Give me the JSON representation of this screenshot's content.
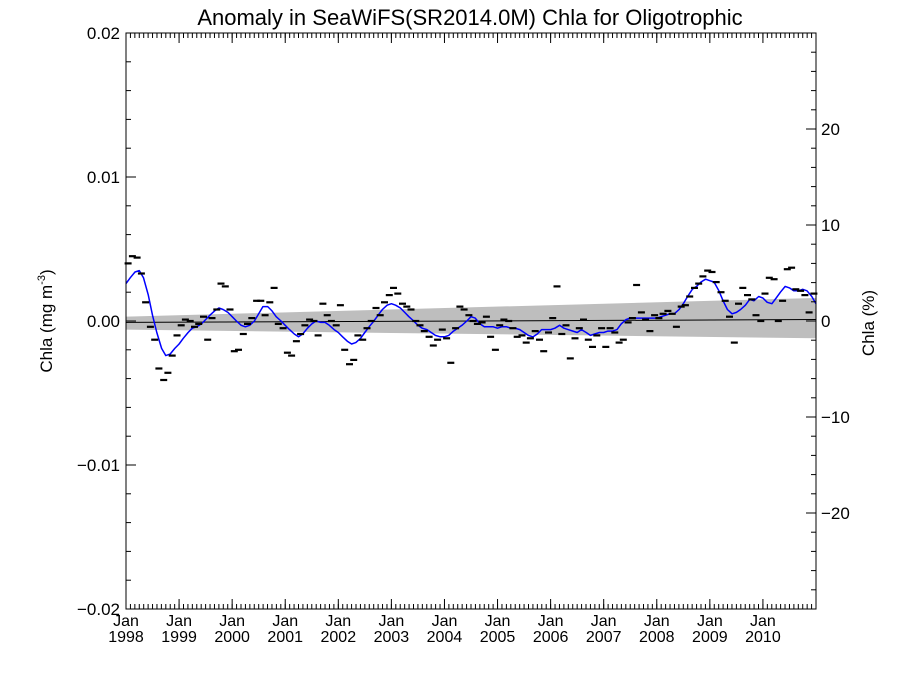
{
  "chart_data": {
    "type": "line",
    "title": "Anomaly in SeaWiFS(SR2014.0M) Chla for Oligotrophic",
    "ylabel_left": "Chla (mg m",
    "ylabel_left_sup": "-3",
    "ylabel_left_end": ")",
    "ylabel_right": "Chla (%)",
    "ylim_left": [
      -0.02,
      0.02
    ],
    "ylim_right": [
      -30,
      30
    ],
    "xlim": [
      1998.0,
      2011.0
    ],
    "left_ticks": [
      {
        "value": 0.02,
        "label": "0.02"
      },
      {
        "value": 0.01,
        "label": "0.01"
      },
      {
        "value": 0.0,
        "label": "0.00"
      },
      {
        "value": -0.01,
        "label": "−0.01"
      },
      {
        "value": -0.02,
        "label": "−0.02"
      }
    ],
    "right_ticks": [
      {
        "value": 20,
        "label": "20"
      },
      {
        "value": 10,
        "label": "10"
      },
      {
        "value": 0,
        "label": "0"
      },
      {
        "value": -10,
        "label": "−10"
      },
      {
        "value": -20,
        "label": "−20"
      }
    ],
    "x_ticks": [
      {
        "value": 1998,
        "month": "Jan",
        "year": "1998"
      },
      {
        "value": 1999,
        "month": "Jan",
        "year": "1999"
      },
      {
        "value": 2000,
        "month": "Jan",
        "year": "2000"
      },
      {
        "value": 2001,
        "month": "Jan",
        "year": "2001"
      },
      {
        "value": 2002,
        "month": "Jan",
        "year": "2002"
      },
      {
        "value": 2003,
        "month": "Jan",
        "year": "2003"
      },
      {
        "value": 2004,
        "month": "Jan",
        "year": "2004"
      },
      {
        "value": 2005,
        "month": "Jan",
        "year": "2005"
      },
      {
        "value": 2006,
        "month": "Jan",
        "year": "2006"
      },
      {
        "value": 2007,
        "month": "Jan",
        "year": "2007"
      },
      {
        "value": 2008,
        "month": "Jan",
        "year": "2008"
      },
      {
        "value": 2009,
        "month": "Jan",
        "year": "2009"
      },
      {
        "value": 2010,
        "month": "Jan",
        "year": "2010"
      }
    ],
    "confidence_band": {
      "color": "#bebebe",
      "upper": [
        [
          1998.0,
          0.0003
        ],
        [
          2011.0,
          0.0016
        ]
      ],
      "lower": [
        [
          1998.0,
          -0.0006
        ],
        [
          2011.0,
          -0.0012
        ]
      ]
    },
    "trend_line": {
      "color": "#000000",
      "points": [
        [
          1998.0,
          -0.0001
        ],
        [
          2011.0,
          0.0001
        ]
      ]
    },
    "monthly_anomalies": [
      [
        1998.04,
        0.004
      ],
      [
        1998.12,
        0.0045
      ],
      [
        1998.21,
        0.0044
      ],
      [
        1998.29,
        0.0033
      ],
      [
        1998.37,
        0.0013
      ],
      [
        1998.46,
        -0.0004
      ],
      [
        1998.54,
        -0.0013
      ],
      [
        1998.62,
        -0.0033
      ],
      [
        1998.71,
        -0.0041
      ],
      [
        1998.79,
        -0.0036
      ],
      [
        1998.87,
        -0.0024
      ],
      [
        1998.96,
        -0.001
      ],
      [
        1999.04,
        -0.0003
      ],
      [
        1999.12,
        0.0001
      ],
      [
        1999.21,
        0.0
      ],
      [
        1999.29,
        -0.0004
      ],
      [
        1999.37,
        -0.0002
      ],
      [
        1999.46,
        0.0003
      ],
      [
        1999.54,
        -0.0013
      ],
      [
        1999.62,
        0.0002
      ],
      [
        1999.71,
        0.0008
      ],
      [
        1999.79,
        0.0026
      ],
      [
        1999.87,
        0.0024
      ],
      [
        1999.96,
        0.0008
      ],
      [
        2000.04,
        -0.0021
      ],
      [
        2000.12,
        -0.002
      ],
      [
        2000.21,
        -0.0009
      ],
      [
        2000.29,
        -0.0002
      ],
      [
        2000.37,
        0.0002
      ],
      [
        2000.46,
        0.0014
      ],
      [
        2000.54,
        0.0014
      ],
      [
        2000.62,
        0.0004
      ],
      [
        2000.71,
        0.0013
      ],
      [
        2000.79,
        0.0023
      ],
      [
        2000.87,
        -0.0002
      ],
      [
        2000.96,
        -0.0005
      ],
      [
        2001.04,
        -0.0022
      ],
      [
        2001.12,
        -0.0024
      ],
      [
        2001.21,
        -0.0014
      ],
      [
        2001.29,
        -0.0009
      ],
      [
        2001.37,
        -0.0003
      ],
      [
        2001.46,
        0.0001
      ],
      [
        2001.54,
        0.0
      ],
      [
        2001.62,
        -0.001
      ],
      [
        2001.71,
        0.0012
      ],
      [
        2001.79,
        0.0004
      ],
      [
        2001.87,
        0.0
      ],
      [
        2001.96,
        -0.0003
      ],
      [
        2002.04,
        0.0011
      ],
      [
        2002.12,
        -0.002
      ],
      [
        2002.21,
        -0.003
      ],
      [
        2002.29,
        -0.0027
      ],
      [
        2002.37,
        -0.001
      ],
      [
        2002.46,
        -0.0013
      ],
      [
        2002.54,
        -0.0005
      ],
      [
        2002.62,
        0.0
      ],
      [
        2002.71,
        0.0009
      ],
      [
        2002.79,
        0.0004
      ],
      [
        2002.87,
        0.0013
      ],
      [
        2002.96,
        0.0018
      ],
      [
        2003.04,
        0.0023
      ],
      [
        2003.12,
        0.0019
      ],
      [
        2003.21,
        0.0012
      ],
      [
        2003.29,
        0.001
      ],
      [
        2003.37,
        0.0008
      ],
      [
        2003.46,
        0.0
      ],
      [
        2003.54,
        -0.0003
      ],
      [
        2003.62,
        -0.0007
      ],
      [
        2003.71,
        -0.0011
      ],
      [
        2003.79,
        -0.0017
      ],
      [
        2003.87,
        -0.0013
      ],
      [
        2003.96,
        -0.0006
      ],
      [
        2004.04,
        -0.0012
      ],
      [
        2004.12,
        -0.0029
      ],
      [
        2004.21,
        -0.0005
      ],
      [
        2004.29,
        0.001
      ],
      [
        2004.37,
        0.0008
      ],
      [
        2004.46,
        0.0004
      ],
      [
        2004.54,
        0.0
      ],
      [
        2004.62,
        -0.0002
      ],
      [
        2004.71,
        -0.0001
      ],
      [
        2004.79,
        0.0003
      ],
      [
        2004.87,
        -0.0011
      ],
      [
        2004.96,
        -0.002
      ],
      [
        2005.04,
        -0.0003
      ],
      [
        2005.12,
        0.0001
      ],
      [
        2005.21,
        0.0
      ],
      [
        2005.29,
        -0.0005
      ],
      [
        2005.37,
        -0.0011
      ],
      [
        2005.46,
        -0.001
      ],
      [
        2005.54,
        -0.0015
      ],
      [
        2005.62,
        -0.0012
      ],
      [
        2005.71,
        -0.0007
      ],
      [
        2005.79,
        -0.0013
      ],
      [
        2005.87,
        -0.0021
      ],
      [
        2005.96,
        -0.0008
      ],
      [
        2006.04,
        0.0002
      ],
      [
        2006.12,
        0.0024
      ],
      [
        2006.21,
        -0.0009
      ],
      [
        2006.29,
        -0.0003
      ],
      [
        2006.37,
        -0.0026
      ],
      [
        2006.46,
        -0.0012
      ],
      [
        2006.54,
        -0.0005
      ],
      [
        2006.62,
        0.0001
      ],
      [
        2006.71,
        -0.0013
      ],
      [
        2006.79,
        -0.0018
      ],
      [
        2006.87,
        -0.001
      ],
      [
        2006.96,
        -0.0005
      ],
      [
        2007.04,
        -0.0018
      ],
      [
        2007.12,
        -0.0005
      ],
      [
        2007.21,
        -0.0008
      ],
      [
        2007.29,
        -0.0015
      ],
      [
        2007.37,
        -0.0013
      ],
      [
        2007.46,
        -0.0001
      ],
      [
        2007.54,
        0.0002
      ],
      [
        2007.62,
        0.0025
      ],
      [
        2007.71,
        0.0006
      ],
      [
        2007.79,
        0.0001
      ],
      [
        2007.87,
        -0.0007
      ],
      [
        2007.96,
        0.0004
      ],
      [
        2008.04,
        0.0002
      ],
      [
        2008.12,
        0.0005
      ],
      [
        2008.21,
        0.0007
      ],
      [
        2008.29,
        0.0005
      ],
      [
        2008.37,
        -0.0004
      ],
      [
        2008.46,
        0.001
      ],
      [
        2008.54,
        0.0011
      ],
      [
        2008.62,
        0.0017
      ],
      [
        2008.71,
        0.0023
      ],
      [
        2008.79,
        0.0026
      ],
      [
        2008.87,
        0.0031
      ],
      [
        2008.96,
        0.0035
      ],
      [
        2009.04,
        0.0034
      ],
      [
        2009.12,
        0.0027
      ],
      [
        2009.21,
        0.002
      ],
      [
        2009.29,
        0.0014
      ],
      [
        2009.37,
        0.0003
      ],
      [
        2009.46,
        -0.0015
      ],
      [
        2009.54,
        0.0012
      ],
      [
        2009.62,
        0.0023
      ],
      [
        2009.71,
        0.0018
      ],
      [
        2009.79,
        0.0015
      ],
      [
        2009.87,
        0.0004
      ],
      [
        2009.96,
        0.0
      ],
      [
        2010.04,
        0.0019
      ],
      [
        2010.12,
        0.003
      ],
      [
        2010.21,
        0.0029
      ],
      [
        2010.29,
        0.0
      ],
      [
        2010.37,
        0.0014
      ],
      [
        2010.46,
        0.0036
      ],
      [
        2010.54,
        0.0037
      ],
      [
        2010.62,
        0.0022
      ],
      [
        2010.71,
        0.0021
      ],
      [
        2010.79,
        0.0018
      ],
      [
        2010.87,
        0.0006
      ],
      [
        2010.96,
        0.0019
      ]
    ],
    "running_mean": {
      "color": "#0000ff",
      "points": [
        [
          1998.0,
          0.0026
        ],
        [
          1998.08,
          0.003
        ],
        [
          1998.17,
          0.0034
        ],
        [
          1998.25,
          0.0035
        ],
        [
          1998.33,
          0.003
        ],
        [
          1998.42,
          0.0018
        ],
        [
          1998.5,
          0.0004
        ],
        [
          1998.58,
          -0.0008
        ],
        [
          1998.67,
          -0.0019
        ],
        [
          1998.75,
          -0.0024
        ],
        [
          1998.83,
          -0.0023
        ],
        [
          1998.92,
          -0.0019
        ],
        [
          1999.0,
          -0.0016
        ],
        [
          1999.08,
          -0.0012
        ],
        [
          1999.17,
          -0.0008
        ],
        [
          1999.25,
          -0.0005
        ],
        [
          1999.33,
          -0.0004
        ],
        [
          1999.42,
          -0.0002
        ],
        [
          1999.5,
          0.0001
        ],
        [
          1999.58,
          0.0004
        ],
        [
          1999.67,
          0.0007
        ],
        [
          1999.75,
          0.0009
        ],
        [
          1999.83,
          0.0008
        ],
        [
          1999.92,
          0.0006
        ],
        [
          2000.0,
          0.0003
        ],
        [
          2000.08,
          0.0
        ],
        [
          2000.17,
          -0.0003
        ],
        [
          2000.25,
          -0.0004
        ],
        [
          2000.33,
          -0.0003
        ],
        [
          2000.42,
          0.0
        ],
        [
          2000.5,
          0.0005
        ],
        [
          2000.58,
          0.001
        ],
        [
          2000.67,
          0.001
        ],
        [
          2000.75,
          0.0007
        ],
        [
          2000.83,
          0.0003
        ],
        [
          2000.92,
          0.0
        ],
        [
          2001.0,
          -0.0003
        ],
        [
          2001.08,
          -0.0006
        ],
        [
          2001.17,
          -0.0009
        ],
        [
          2001.25,
          -0.0011
        ],
        [
          2001.33,
          -0.0009
        ],
        [
          2001.42,
          -0.0005
        ],
        [
          2001.5,
          -0.0002
        ],
        [
          2001.58,
          0.0
        ],
        [
          2001.67,
          -0.0001
        ],
        [
          2001.75,
          -0.0001
        ],
        [
          2001.83,
          -0.0003
        ],
        [
          2001.92,
          -0.0006
        ],
        [
          2002.0,
          -0.0008
        ],
        [
          2002.08,
          -0.0011
        ],
        [
          2002.17,
          -0.0014
        ],
        [
          2002.25,
          -0.0016
        ],
        [
          2002.33,
          -0.0015
        ],
        [
          2002.42,
          -0.0012
        ],
        [
          2002.5,
          -0.0008
        ],
        [
          2002.58,
          -0.0004
        ],
        [
          2002.67,
          0.0
        ],
        [
          2002.75,
          0.0004
        ],
        [
          2002.83,
          0.0008
        ],
        [
          2002.92,
          0.0011
        ],
        [
          2003.0,
          0.0012
        ],
        [
          2003.08,
          0.0011
        ],
        [
          2003.17,
          0.0009
        ],
        [
          2003.25,
          0.0006
        ],
        [
          2003.33,
          0.0003
        ],
        [
          2003.42,
          0.0
        ],
        [
          2003.5,
          -0.0003
        ],
        [
          2003.58,
          -0.0005
        ],
        [
          2003.67,
          -0.0006
        ],
        [
          2003.75,
          -0.0008
        ],
        [
          2003.83,
          -0.001
        ],
        [
          2003.92,
          -0.0011
        ],
        [
          2004.0,
          -0.0011
        ],
        [
          2004.08,
          -0.001
        ],
        [
          2004.17,
          -0.0007
        ],
        [
          2004.25,
          -0.0005
        ],
        [
          2004.33,
          -0.0003
        ],
        [
          2004.42,
          0.0
        ],
        [
          2004.5,
          0.0003
        ],
        [
          2004.58,
          0.0002
        ],
        [
          2004.67,
          -0.0002
        ],
        [
          2004.75,
          -0.0004
        ],
        [
          2004.83,
          -0.0004
        ],
        [
          2004.92,
          -0.0004
        ],
        [
          2005.0,
          -0.0005
        ],
        [
          2005.08,
          -0.0004
        ],
        [
          2005.17,
          -0.0004
        ],
        [
          2005.25,
          -0.0005
        ],
        [
          2005.33,
          -0.0005
        ],
        [
          2005.42,
          -0.0006
        ],
        [
          2005.5,
          -0.0008
        ],
        [
          2005.58,
          -0.001
        ],
        [
          2005.67,
          -0.0011
        ],
        [
          2005.75,
          -0.0009
        ],
        [
          2005.83,
          -0.0006
        ],
        [
          2005.92,
          -0.0006
        ],
        [
          2006.0,
          -0.0006
        ],
        [
          2006.08,
          -0.0005
        ],
        [
          2006.17,
          -0.0003
        ],
        [
          2006.25,
          -0.0005
        ],
        [
          2006.33,
          -0.0006
        ],
        [
          2006.42,
          -0.0007
        ],
        [
          2006.5,
          -0.0008
        ],
        [
          2006.58,
          -0.0006
        ],
        [
          2006.67,
          -0.0008
        ],
        [
          2006.75,
          -0.001
        ],
        [
          2006.83,
          -0.0009
        ],
        [
          2006.92,
          -0.0008
        ],
        [
          2007.0,
          -0.0008
        ],
        [
          2007.08,
          -0.0007
        ],
        [
          2007.17,
          -0.0007
        ],
        [
          2007.25,
          -0.0006
        ],
        [
          2007.33,
          -0.0002
        ],
        [
          2007.42,
          0.0001
        ],
        [
          2007.5,
          0.0002
        ],
        [
          2007.58,
          0.0002
        ],
        [
          2007.67,
          0.0002
        ],
        [
          2007.75,
          0.0002
        ],
        [
          2007.83,
          0.0002
        ],
        [
          2007.92,
          0.0002
        ],
        [
          2008.0,
          0.0002
        ],
        [
          2008.08,
          0.0003
        ],
        [
          2008.17,
          0.0004
        ],
        [
          2008.25,
          0.0005
        ],
        [
          2008.33,
          0.0005
        ],
        [
          2008.42,
          0.0008
        ],
        [
          2008.5,
          0.0012
        ],
        [
          2008.58,
          0.0017
        ],
        [
          2008.67,
          0.0022
        ],
        [
          2008.75,
          0.0024
        ],
        [
          2008.83,
          0.0027
        ],
        [
          2008.92,
          0.0029
        ],
        [
          2009.0,
          0.0028
        ],
        [
          2009.08,
          0.0027
        ],
        [
          2009.17,
          0.0021
        ],
        [
          2009.25,
          0.0014
        ],
        [
          2009.33,
          0.0008
        ],
        [
          2009.42,
          0.0005
        ],
        [
          2009.5,
          0.0006
        ],
        [
          2009.58,
          0.0008
        ],
        [
          2009.67,
          0.0011
        ],
        [
          2009.75,
          0.0015
        ],
        [
          2009.83,
          0.0014
        ],
        [
          2009.92,
          0.0017
        ],
        [
          2010.0,
          0.0016
        ],
        [
          2010.08,
          0.0013
        ],
        [
          2010.17,
          0.0012
        ],
        [
          2010.25,
          0.0016
        ],
        [
          2010.33,
          0.002
        ],
        [
          2010.42,
          0.0024
        ],
        [
          2010.5,
          0.0023
        ],
        [
          2010.58,
          0.0021
        ],
        [
          2010.67,
          0.0021
        ],
        [
          2010.75,
          0.0022
        ],
        [
          2010.83,
          0.0021
        ],
        [
          2010.92,
          0.0017
        ],
        [
          2011.0,
          0.0012
        ]
      ]
    },
    "grid": false,
    "legend": "none"
  }
}
